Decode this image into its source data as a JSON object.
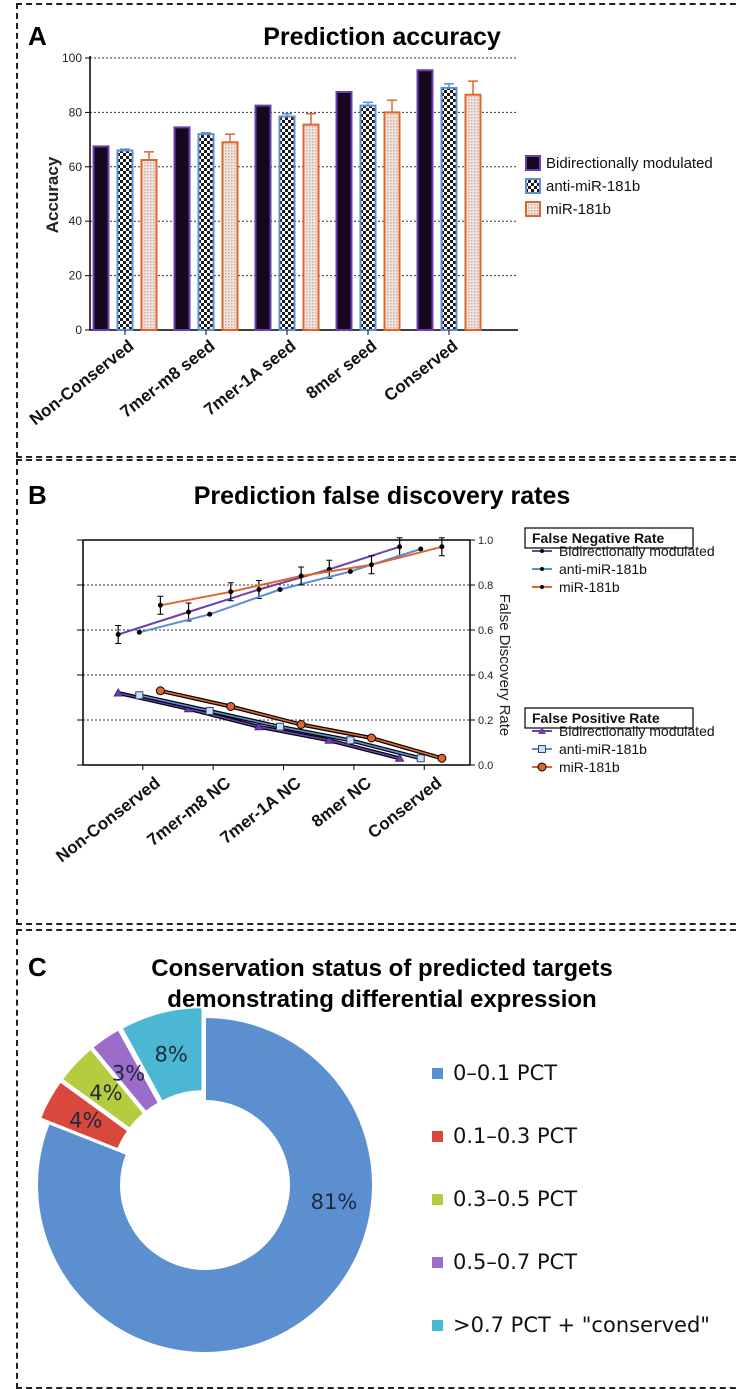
{
  "panelA": {
    "letter": "A",
    "title": "Prediction accuracy",
    "ylabel": "Accuracy",
    "legend": [
      "Bidirectionally modulated",
      "anti-miR-181b",
      "miR-181b"
    ]
  },
  "panelB": {
    "letter": "B",
    "title": "Prediction false discovery rates",
    "y2label": "False Discovery Rate",
    "fnr_title": "False Negative Rate",
    "fpr_title": "False Positive Rate",
    "legend": [
      "Bidirectionally modulated",
      "anti-miR-181b",
      "miR-181b"
    ]
  },
  "panelC": {
    "letter": "C",
    "title_line1": "Conservation status of predicted targets",
    "title_line2": "demonstrating differential expression"
  },
  "colors": {
    "bidirectional": "#6a3fb0",
    "anti": "#5b8ed6",
    "mir": "#e0642f",
    "pie": [
      "#5c8fd0",
      "#d9483d",
      "#b5cc3e",
      "#9b6cc9",
      "#4cb7d3"
    ]
  },
  "chart_data": [
    {
      "type": "bar",
      "title": "Prediction accuracy",
      "xlabel": "",
      "ylabel": "Accuracy",
      "ylim": [
        0,
        100
      ],
      "yticks": [
        0,
        20,
        40,
        60,
        80,
        100
      ],
      "categories": [
        "Non-Conserved",
        "7mer-m8 seed",
        "7mer-1A seed",
        "8mer seed",
        "Conserved"
      ],
      "series": [
        {
          "name": "Bidirectionally modulated",
          "values": [
            67.5,
            74.5,
            82.5,
            87.5,
            95.5
          ],
          "errors": [
            0,
            0,
            0,
            0,
            0
          ]
        },
        {
          "name": "anti-miR-181b",
          "values": [
            66,
            72,
            78.5,
            82.5,
            89
          ],
          "errors": [
            0.5,
            0.5,
            1,
            1.2,
            1.5
          ]
        },
        {
          "name": "miR-181b",
          "values": [
            62.5,
            69,
            75.5,
            80,
            86.5
          ],
          "errors": [
            3,
            3,
            4,
            4.5,
            5
          ]
        }
      ],
      "legend": "right",
      "grid": true
    },
    {
      "type": "line",
      "title": "Prediction false discovery rates",
      "xlabel": "",
      "ylabel": "False Discovery Rate",
      "ylim": [
        0,
        1
      ],
      "yticks": [
        "0.0",
        "0.2",
        "0.4",
        "0.6",
        "0.8",
        "1.0"
      ],
      "categories": [
        "Non-Conserved",
        "7mer-m8 NC",
        "7mer-1A NC",
        "8mer NC",
        "Conserved"
      ],
      "groups": [
        {
          "name": "False Negative Rate",
          "series": [
            {
              "name": "Bidirectionally modulated",
              "x": [
                0.5,
                1.5,
                2.5,
                3.5,
                4.5
              ],
              "values": [
                0.58,
                0.68,
                0.78,
                0.87,
                0.97
              ]
            },
            {
              "name": "anti-miR-181b",
              "x": [
                0.8,
                1.8,
                2.8,
                3.8,
                4.8
              ],
              "values": [
                0.59,
                0.67,
                0.78,
                0.86,
                0.96
              ]
            },
            {
              "name": "miR-181b",
              "x": [
                1.1,
                2.1,
                3.1,
                4.1,
                5.1
              ],
              "values": [
                0.71,
                0.77,
                0.84,
                0.89,
                0.97
              ]
            }
          ]
        },
        {
          "name": "False Positive Rate",
          "series": [
            {
              "name": "Bidirectionally modulated",
              "x": [
                0.5,
                1.5,
                2.5,
                3.5,
                4.5
              ],
              "values": [
                0.32,
                0.25,
                0.17,
                0.11,
                0.03
              ]
            },
            {
              "name": "anti-miR-181b",
              "x": [
                0.8,
                1.8,
                2.8,
                3.8,
                4.8
              ],
              "values": [
                0.31,
                0.24,
                0.17,
                0.11,
                0.03
              ]
            },
            {
              "name": "miR-181b",
              "x": [
                1.1,
                2.1,
                3.1,
                4.1,
                5.1
              ],
              "values": [
                0.33,
                0.26,
                0.18,
                0.12,
                0.03
              ]
            }
          ]
        }
      ],
      "legend": "right",
      "grid": true
    },
    {
      "type": "pie",
      "title": "Conservation status of predicted targets demonstrating differential expression",
      "labels": [
        "0–0.1 PCT",
        "0.1–0.3 PCT",
        "0.3–0.5 PCT",
        "0.5–0.7 PCT",
        ">0.7 PCT + \"conserved\""
      ],
      "values": [
        81,
        4,
        4,
        3,
        8
      ],
      "value_labels": [
        "81%",
        "4%",
        "4%",
        "3%",
        "8%"
      ],
      "donut": true,
      "legend": "right"
    }
  ]
}
